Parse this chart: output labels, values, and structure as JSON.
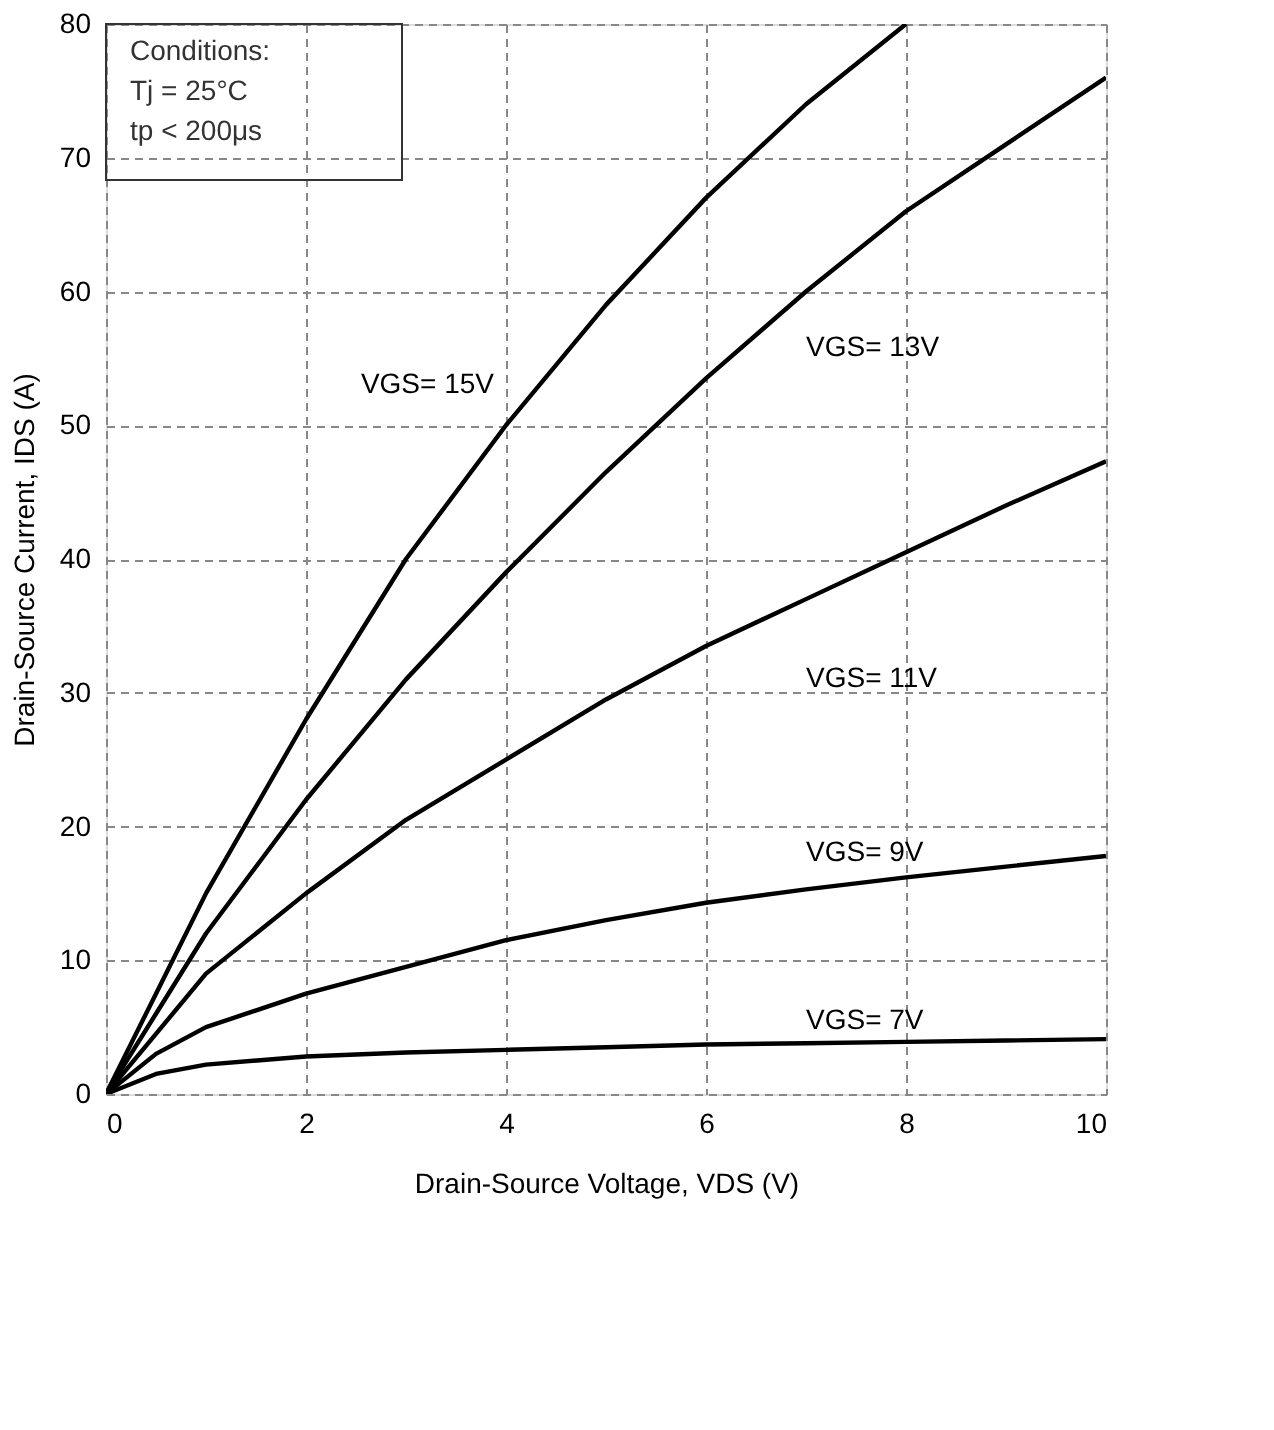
{
  "chart_data": {
    "type": "line",
    "xlabel": "Drain-Source Voltage, VDS (V)",
    "ylabel": "Drain-Source Current, IDS (A)",
    "x": [
      0,
      0.5,
      1,
      2,
      3,
      4,
      5,
      6,
      7,
      8,
      9,
      10
    ],
    "series": [
      {
        "name": "VGS= 15V",
        "color": "#000000",
        "x": [
          0,
          0.5,
          1,
          2,
          3,
          4,
          5,
          6,
          7,
          8
        ],
        "values": [
          0,
          7.5,
          15,
          28,
          40,
          50,
          59,
          67,
          74,
          80
        ]
      },
      {
        "name": "VGS= 13V",
        "color": "#000000",
        "values": [
          0,
          6,
          12,
          22,
          31,
          39,
          46.5,
          53.5,
          60,
          66,
          71,
          76
        ]
      },
      {
        "name": "VGS= 11V",
        "color": "#000000",
        "values": [
          0,
          4.5,
          9,
          15,
          20.5,
          25,
          29.5,
          33.5,
          37,
          40.5,
          44,
          47.3
        ]
      },
      {
        "name": "VGS= 9V",
        "color": "#000000",
        "values": [
          0,
          3,
          5,
          7.5,
          9.5,
          11.5,
          13,
          14.3,
          15.3,
          16.2,
          17,
          17.8
        ]
      },
      {
        "name": "VGS= 7V",
        "color": "#000000",
        "values": [
          0,
          1.5,
          2.2,
          2.8,
          3.1,
          3.3,
          3.5,
          3.7,
          3.8,
          3.9,
          4,
          4.1
        ]
      }
    ],
    "annotations": [
      "Conditions:",
      "Tj = 25°C",
      "tp < 200μs"
    ],
    "xlim": [
      0,
      10
    ],
    "ylim": [
      0,
      80
    ],
    "xticks": [
      0,
      2,
      4,
      6,
      8,
      10
    ],
    "yticks": [
      0,
      10,
      20,
      30,
      40,
      50,
      60,
      70,
      80
    ],
    "grid": true,
    "legend": false,
    "marker": "none",
    "line_style": "solid"
  }
}
